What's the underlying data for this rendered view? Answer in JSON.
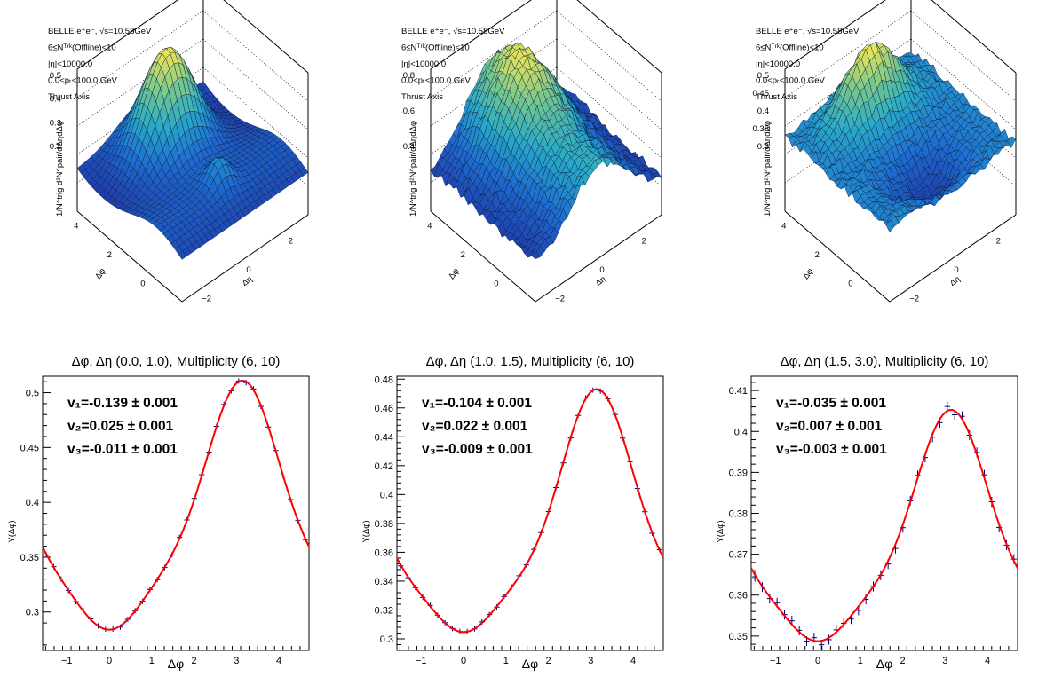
{
  "colors": {
    "fit": "#ff0000",
    "points": "#00007f",
    "frame": "#000000",
    "surface_low": "#1f4fc8",
    "surface_high": "#f0e040"
  },
  "surface_plots": [
    {
      "info": [
        "BELLE e⁺e⁻, √s=10.58GeV",
        "6≤Nᵀʳᵏ(Offline)<10",
        "|η|<10000.0",
        "0.0<pₜ<100.0 GeV",
        "Thrust Axis"
      ],
      "zlabel": "1/N^trig d²N^pair/dΔηdΔφ",
      "z_ticks": [
        "0.2",
        "0.3",
        "0.4",
        "0.5"
      ],
      "phi_ticks": [
        "0",
        "2",
        "4"
      ],
      "eta_ticks": [
        "−2",
        "0",
        "2"
      ],
      "phi_label": "Δφ",
      "eta_label": "Δη",
      "shape": "peak"
    },
    {
      "info": [
        "BELLE e⁺e⁻, √s=10.58GeV",
        "6≤Nᵀʳᵏ(Offline)<10",
        "|η|<10000.0",
        "0.0<pₜ<100.0 GeV",
        "Thrust Axis"
      ],
      "zlabel": "1/N^trig d²N^pair/dΔηdΔφ",
      "z_ticks": [
        "0.4",
        "0.6",
        "0.8"
      ],
      "phi_ticks": [
        "0",
        "2",
        "4"
      ],
      "eta_ticks": [
        "−2",
        "0",
        "2"
      ],
      "phi_label": "Δφ",
      "eta_label": "Δη",
      "shape": "ridge"
    },
    {
      "info": [
        "BELLE e⁺e⁻, √s=10.58GeV",
        "6≤Nᵀʳᵏ(Offline)<10",
        "|η|<10000.0",
        "0.0<pₜ<100.0 GeV",
        "Thrust Axis"
      ],
      "zlabel": "1/N^trig d²N^pair/dΔηdΔφ",
      "z_ticks": [
        "0.3",
        "0.35",
        "0.4",
        "0.45",
        "0.5"
      ],
      "phi_ticks": [
        "0",
        "2",
        "4"
      ],
      "eta_ticks": [
        "−2",
        "0",
        "2"
      ],
      "phi_label": "Δφ",
      "eta_label": "Δη",
      "shape": "valley"
    }
  ],
  "chart_data": [
    {
      "type": "scatter",
      "title": "Δφ, Δη (0.0, 1.0), Multiplicity (6, 10)",
      "xlabel": "Δφ",
      "ylabel": "Y(Δφ)",
      "xlim": [
        -1.571,
        4.712
      ],
      "ylim": [
        0.265,
        0.515
      ],
      "x_ticks": [
        -1,
        0,
        1,
        2,
        3,
        4
      ],
      "y_ticks": [
        0.3,
        0.35,
        0.4,
        0.45,
        0.5
      ],
      "y_tick_labels": [
        "0.3",
        "0.35",
        "0.4",
        "0.45",
        "0.5"
      ],
      "fit": {
        "y0": 0.3785,
        "v1": -0.139,
        "v2": 0.025,
        "v3": -0.011
      },
      "annotations": [
        "v₁=-0.139 ± 0.001",
        "v₂=0.025 ± 0.001",
        "v₃=-0.011 ± 0.001"
      ],
      "noise": 0.0012,
      "xerr": 0.065
    },
    {
      "type": "scatter",
      "title": "Δφ, Δη (1.0, 1.5), Multiplicity (6, 10)",
      "xlabel": "Δφ",
      "ylabel": "Y(Δφ)",
      "xlim": [
        -1.571,
        4.712
      ],
      "ylim": [
        0.292,
        0.482
      ],
      "x_ticks": [
        -1,
        0,
        1,
        2,
        3,
        4
      ],
      "y_ticks": [
        0.3,
        0.32,
        0.34,
        0.36,
        0.38,
        0.4,
        0.42,
        0.44,
        0.46,
        0.48
      ],
      "y_tick_labels": [
        "0.3",
        "0.32",
        "0.34",
        "0.36",
        "0.38",
        "0.4",
        "0.42",
        "0.44",
        "0.46",
        "0.48"
      ],
      "fit": {
        "y0": 0.3725,
        "v1": -0.104,
        "v2": 0.022,
        "v3": -0.009
      },
      "annotations": [
        "v₁=-0.104 ± 0.001",
        "v₂=0.022 ± 0.001",
        "v₃=-0.009 ± 0.001"
      ],
      "noise": 0.0008,
      "xerr": 0.065
    },
    {
      "type": "scatter",
      "title": "Δφ, Δη (1.5, 3.0), Multiplicity (6, 10)",
      "xlabel": "Δφ",
      "ylabel": "Y(Δφ)",
      "xlim": [
        -1.571,
        4.712
      ],
      "ylim": [
        0.3465,
        0.4135
      ],
      "x_ticks": [
        -1,
        0,
        1,
        2,
        3,
        4
      ],
      "y_ticks": [
        0.35,
        0.36,
        0.37,
        0.38,
        0.39,
        0.4,
        0.41
      ],
      "y_tick_labels": [
        "0.35",
        "0.36",
        "0.37",
        "0.38",
        "0.39",
        "0.4",
        "0.41"
      ],
      "fit": {
        "y0": 0.3718,
        "v1": -0.035,
        "v2": 0.007,
        "v3": -0.003
      },
      "annotations": [
        "v₁=-0.035 ± 0.001",
        "v₂=0.007 ± 0.001",
        "v₃=-0.003 ± 0.001"
      ],
      "noise": 0.0011,
      "xerr": 0.065
    }
  ]
}
